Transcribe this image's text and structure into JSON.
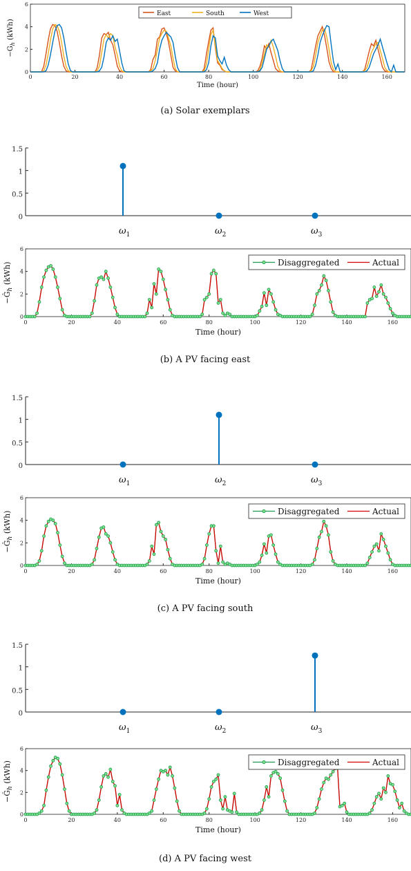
{
  "colors": {
    "east": "#d95319",
    "south": "#edb120",
    "west": "#0072bd",
    "stem": "#0072bd",
    "disaggregated": "#1a9a50",
    "disaggregated_fill": "#7fe08a",
    "actual": "#d40000"
  },
  "chart_data": [
    {
      "id": "exemplars",
      "type": "line",
      "caption": "(a) Solar exemplars",
      "xlabel": "Time (hour)",
      "ylabel": "−G_h (kWh)",
      "xlim": [
        0,
        168
      ],
      "ylim": [
        0,
        6
      ],
      "xticks": [
        0,
        20,
        40,
        60,
        80,
        100,
        120,
        140,
        160
      ],
      "yticks": [
        0,
        2,
        4,
        6
      ],
      "legend": "top-center",
      "series": [
        {
          "name": "East",
          "color_key": "east"
        },
        {
          "name": "South",
          "color_key": "south"
        },
        {
          "name": "West",
          "color_key": "west"
        }
      ],
      "days": [
        {
          "start": 5,
          "end": 20,
          "east": [
            0,
            0.5,
            1.6,
            2.8,
            3.8,
            4.2,
            4.1,
            3.6,
            2.6,
            1.4,
            0.5,
            0.1,
            0,
            0,
            0,
            0
          ],
          "south": [
            0,
            0.1,
            0.6,
            1.6,
            2.8,
            3.8,
            4.2,
            4.1,
            3.6,
            2.6,
            1.4,
            0.5,
            0.1,
            0,
            0,
            0
          ],
          "west": [
            0,
            0,
            0.1,
            0.6,
            1.5,
            2.6,
            3.6,
            4.1,
            4.2,
            3.9,
            3.0,
            1.8,
            0.7,
            0.1,
            0,
            0
          ]
        },
        {
          "start": 29,
          "end": 44,
          "east": [
            0,
            0.4,
            1.5,
            3.0,
            3.4,
            3.3,
            3.5,
            2.8,
            2.4,
            1.5,
            0.5,
            0.1,
            0,
            0,
            0,
            0
          ],
          "south": [
            0,
            0.1,
            0.5,
            1.7,
            2.9,
            3.3,
            3.0,
            3.4,
            3.2,
            2.2,
            1.5,
            0.5,
            0.1,
            0,
            0,
            0
          ],
          "west": [
            0,
            0,
            0.1,
            0.4,
            1.3,
            2.6,
            3.0,
            2.8,
            3.2,
            2.7,
            2.9,
            1.9,
            0.8,
            0.1,
            0,
            0
          ]
        },
        {
          "start": 53,
          "end": 68,
          "east": [
            0,
            0.2,
            1.1,
            1.5,
            2.9,
            3.1,
            3.8,
            3.9,
            3.4,
            2.6,
            1.5,
            0.4,
            0.1,
            0,
            0,
            0
          ],
          "south": [
            0,
            0.1,
            0.3,
            1.0,
            2.0,
            3.0,
            3.4,
            3.7,
            3.6,
            3.0,
            2.3,
            1.2,
            0.3,
            0,
            0,
            0
          ],
          "west": [
            0,
            0,
            0.1,
            0.3,
            0.8,
            2.0,
            2.8,
            3.2,
            3.5,
            3.3,
            3.1,
            2.6,
            1.4,
            0.4,
            0,
            0
          ]
        },
        {
          "start": 77,
          "end": 92,
          "east": [
            0,
            0.3,
            1.6,
            2.7,
            3.7,
            3.9,
            2.1,
            0.8,
            0.6,
            0.2,
            0.1,
            0,
            0,
            0,
            0,
            0
          ],
          "south": [
            0,
            0.1,
            0.7,
            2.0,
            3.3,
            3.7,
            2.3,
            1.0,
            0.7,
            0.3,
            0.1,
            0,
            0,
            0,
            0,
            0
          ],
          "west": [
            0,
            0,
            0.2,
            0.8,
            2.3,
            3.2,
            3.0,
            1.4,
            1.0,
            0.7,
            1.3,
            0.6,
            0.2,
            0,
            0,
            0
          ]
        },
        {
          "start": 101,
          "end": 116,
          "east": [
            0,
            0.1,
            0.5,
            1.2,
            2.3,
            2.0,
            2.5,
            1.7,
            1.0,
            0.3,
            0.1,
            0,
            0,
            0,
            0,
            0
          ],
          "south": [
            0,
            0,
            0.2,
            0.8,
            1.6,
            2.4,
            2.2,
            2.8,
            2.2,
            1.4,
            0.5,
            0.1,
            0,
            0,
            0,
            0
          ],
          "west": [
            0,
            0,
            0.1,
            0.4,
            1.2,
            2.0,
            2.3,
            2.7,
            2.9,
            2.4,
            1.9,
            1.0,
            0.3,
            0,
            0,
            0
          ]
        },
        {
          "start": 125,
          "end": 140,
          "east": [
            0,
            0.2,
            1.2,
            2.3,
            3.2,
            3.6,
            4.0,
            3.2,
            2.1,
            0.9,
            0.3,
            0,
            0,
            0,
            0,
            0
          ],
          "south": [
            0,
            0.1,
            0.5,
            1.5,
            2.6,
            3.2,
            3.7,
            3.8,
            3.1,
            2.0,
            0.8,
            0.2,
            0,
            0,
            0,
            0
          ],
          "west": [
            0,
            0,
            0.1,
            0.6,
            1.5,
            2.6,
            3.2,
            3.7,
            4.1,
            4.0,
            2.4,
            0.9,
            0.2,
            0.7,
            0,
            0
          ]
        },
        {
          "start": 149,
          "end": 164,
          "east": [
            0,
            0.2,
            1.0,
            1.8,
            2.5,
            2.3,
            2.8,
            2.0,
            1.2,
            0.4,
            0.1,
            0,
            0,
            0,
            0,
            0
          ],
          "south": [
            0,
            0.1,
            0.4,
            1.0,
            1.7,
            2.1,
            2.5,
            2.6,
            1.9,
            1.2,
            0.4,
            0.1,
            0,
            0,
            0,
            0
          ],
          "west": [
            0,
            0,
            0.1,
            0.4,
            1.0,
            1.6,
            2.0,
            2.4,
            2.9,
            2.2,
            1.5,
            0.8,
            0.2,
            0,
            0.6,
            0
          ]
        }
      ]
    },
    {
      "id": "stem-east",
      "type": "stem",
      "xlabels": [
        "ω",
        "ω",
        "ω"
      ],
      "xlabel_subs": [
        "1",
        "2",
        "3"
      ],
      "values": [
        1.1,
        0,
        0
      ],
      "ylim": [
        0,
        1.5
      ],
      "yticks": [
        "0",
        "0.5",
        "1",
        "1.5"
      ]
    },
    {
      "id": "dis-east",
      "type": "line",
      "caption": "(b) A PV facing east",
      "xlabel": "Time (hour)",
      "ylabel": "−Ĝ_h (kWh)",
      "xlim": [
        0,
        168
      ],
      "ylim": [
        0,
        6
      ],
      "xticks": [
        0,
        20,
        40,
        60,
        80,
        100,
        120,
        140,
        160
      ],
      "yticks": [
        0,
        2,
        4,
        6
      ],
      "legend": "top-right",
      "series": [
        {
          "name": "Disaggregated"
        },
        {
          "name": "Actual"
        }
      ],
      "days": [
        {
          "start": 4,
          "end": 20,
          "values": [
            0,
            0.3,
            1.3,
            2.6,
            3.5,
            4.1,
            4.4,
            4.5,
            4.2,
            3.5,
            2.6,
            1.6,
            0.6,
            0.1,
            0,
            0,
            0
          ]
        },
        {
          "start": 28,
          "end": 44,
          "values": [
            0,
            0.3,
            1.4,
            2.8,
            3.4,
            3.5,
            3.3,
            4.0,
            3.4,
            2.6,
            1.7,
            0.8,
            0.2,
            0,
            0,
            0,
            0
          ]
        },
        {
          "start": 52,
          "end": 68,
          "values": [
            0,
            0.3,
            1.5,
            0.8,
            2.9,
            2.0,
            4.2,
            4.0,
            3.3,
            2.4,
            1.5,
            0.6,
            0.1,
            0,
            0,
            0,
            0
          ]
        },
        {
          "start": 76,
          "end": 92,
          "values": [
            0,
            0.2,
            1.5,
            1.7,
            2.0,
            3.8,
            4.1,
            3.8,
            1.2,
            1.5,
            0.3,
            0.1,
            0.3,
            0.2,
            0,
            0,
            0
          ]
        },
        {
          "start": 100,
          "end": 116,
          "values": [
            0,
            0.1,
            0.5,
            0.9,
            2.1,
            1.0,
            2.4,
            2.0,
            1.3,
            0.6,
            0.2,
            0.1,
            0,
            0,
            0,
            0,
            0
          ]
        },
        {
          "start": 124,
          "end": 140,
          "values": [
            0,
            0.2,
            1.0,
            2.0,
            2.3,
            2.8,
            3.6,
            3.2,
            2.3,
            1.3,
            0.4,
            0.1,
            0,
            0,
            0,
            0,
            0
          ]
        },
        {
          "start": 148,
          "end": 164,
          "values": [
            0,
            1.2,
            1.5,
            1.6,
            2.6,
            1.8,
            2.2,
            2.8,
            2.0,
            1.7,
            1.2,
            0.7,
            0.3,
            0.1,
            0,
            0,
            0
          ]
        }
      ]
    },
    {
      "id": "stem-south",
      "type": "stem",
      "xlabels": [
        "ω",
        "ω",
        "ω"
      ],
      "xlabel_subs": [
        "1",
        "2",
        "3"
      ],
      "values": [
        0,
        1.1,
        0
      ],
      "ylim": [
        0,
        1.5
      ],
      "yticks": [
        "0",
        "0.5",
        "1",
        "1.5"
      ]
    },
    {
      "id": "dis-south",
      "type": "line",
      "caption": "(c) A PV facing south",
      "xlabel": "Time (hour)",
      "ylabel": "−Ĝ_h (kWh)",
      "xlim": [
        0,
        168
      ],
      "ylim": [
        0,
        6
      ],
      "xticks": [
        0,
        20,
        40,
        60,
        80,
        100,
        120,
        140,
        160
      ],
      "yticks": [
        0,
        2,
        4,
        6
      ],
      "legend": "top-right",
      "series": [
        {
          "name": "Disaggregated"
        },
        {
          "name": "Actual"
        }
      ],
      "days": [
        {
          "start": 4,
          "end": 20,
          "values": [
            0,
            0.1,
            0.4,
            1.3,
            2.6,
            3.5,
            3.9,
            4.1,
            4.0,
            3.7,
            2.9,
            1.8,
            0.8,
            0.2,
            0,
            0,
            0
          ]
        },
        {
          "start": 28,
          "end": 44,
          "values": [
            0,
            0.1,
            0.5,
            1.5,
            2.5,
            3.3,
            3.4,
            2.8,
            2.6,
            2.0,
            1.2,
            0.5,
            0.1,
            0,
            0,
            0,
            0
          ]
        },
        {
          "start": 52,
          "end": 68,
          "values": [
            0,
            0.1,
            0.4,
            1.7,
            1.0,
            3.6,
            3.8,
            3.0,
            2.6,
            2.3,
            1.4,
            0.6,
            0.1,
            0,
            0,
            0,
            0
          ]
        },
        {
          "start": 76,
          "end": 92,
          "values": [
            0,
            0.1,
            0.6,
            1.8,
            2.8,
            3.5,
            3.5,
            1.3,
            0.2,
            1.7,
            0.3,
            0.1,
            0.2,
            0.1,
            0,
            0,
            0
          ]
        },
        {
          "start": 100,
          "end": 116,
          "values": [
            0,
            0.1,
            0.3,
            0.9,
            1.9,
            1.1,
            2.6,
            2.7,
            1.8,
            1.0,
            0.3,
            0.1,
            0,
            0,
            0,
            0,
            0
          ]
        },
        {
          "start": 124,
          "end": 140,
          "values": [
            0,
            0.1,
            0.5,
            1.5,
            2.5,
            3.0,
            3.9,
            3.5,
            2.7,
            1.2,
            0.4,
            0.1,
            0,
            0,
            0,
            0,
            0
          ]
        },
        {
          "start": 148,
          "end": 164,
          "values": [
            0,
            0.2,
            0.7,
            1.2,
            1.7,
            1.9,
            1.3,
            2.8,
            2.3,
            1.7,
            1.1,
            0.5,
            0.1,
            0,
            0,
            0,
            0
          ]
        }
      ]
    },
    {
      "id": "stem-west",
      "type": "stem",
      "xlabels": [
        "ω",
        "ω",
        "ω"
      ],
      "xlabel_subs": [
        "1",
        "2",
        "3"
      ],
      "values": [
        0,
        0,
        1.25
      ],
      "ylim": [
        0,
        1.5
      ],
      "yticks": [
        "0",
        "0.5",
        "1",
        "1.5"
      ]
    },
    {
      "id": "dis-west",
      "type": "line",
      "caption": "(d) A PV facing west",
      "xlabel": "Time (hour)",
      "ylabel": "−Ĝ_h (kWh)",
      "xlim": [
        0,
        168
      ],
      "ylim": [
        0,
        6
      ],
      "xticks": [
        0,
        20,
        40,
        60,
        80,
        100,
        120,
        140,
        160
      ],
      "yticks": [
        0,
        2,
        4,
        6
      ],
      "legend": "top-right",
      "series": [
        {
          "name": "Disaggregated"
        },
        {
          "name": "Actual"
        }
      ],
      "days": [
        {
          "start": 4,
          "end": 22,
          "values": [
            0,
            0,
            0.1,
            0.3,
            0.8,
            2.2,
            3.4,
            4.4,
            4.9,
            5.2,
            5.1,
            4.6,
            3.6,
            2.3,
            1.0,
            0.3,
            0,
            0,
            0
          ]
        },
        {
          "start": 28,
          "end": 46,
          "values": [
            0,
            0,
            0.1,
            0.4,
            1.3,
            2.5,
            3.5,
            3.7,
            3.4,
            4.1,
            3.0,
            2.6,
            0.8,
            1.8,
            0.4,
            0.1,
            0,
            0,
            0
          ]
        },
        {
          "start": 52,
          "end": 70,
          "values": [
            0,
            0,
            0.1,
            0.3,
            1.3,
            2.3,
            3.2,
            4.0,
            3.9,
            4.0,
            3.6,
            4.3,
            3.5,
            2.4,
            1.2,
            0.3,
            0,
            0,
            0
          ]
        },
        {
          "start": 76,
          "end": 94,
          "values": [
            0,
            0,
            0.1,
            0.5,
            1.4,
            2.5,
            3.0,
            3.2,
            3.6,
            1.3,
            0.5,
            1.6,
            0.4,
            0.3,
            0.2,
            1.9,
            0.2,
            0,
            0
          ]
        },
        {
          "start": 100,
          "end": 118,
          "values": [
            0,
            0,
            0.1,
            0.4,
            1.3,
            2.5,
            1.6,
            3.5,
            3.8,
            3.9,
            3.7,
            3.3,
            2.2,
            1.2,
            0.3,
            0,
            0,
            0,
            0
          ]
        },
        {
          "start": 124,
          "end": 142,
          "values": [
            0,
            0,
            0.1,
            0.6,
            1.4,
            2.3,
            2.9,
            3.3,
            3.2,
            3.6,
            3.9,
            4.2,
            4.2,
            0.7,
            0.8,
            1.0,
            0.2,
            0,
            0
          ]
        },
        {
          "start": 148,
          "end": 168,
          "values": [
            0,
            0,
            0.1,
            0.4,
            1.0,
            1.6,
            1.9,
            1.4,
            2.4,
            2.0,
            3.5,
            2.8,
            2.7,
            2.1,
            1.3,
            0.6,
            1.0,
            0.3,
            0.1,
            0,
            0
          ]
        }
      ]
    }
  ]
}
